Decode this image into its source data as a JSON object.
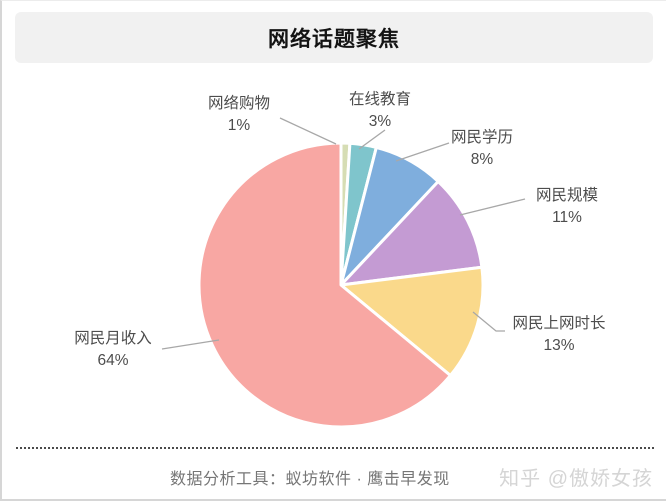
{
  "title": "网络话题聚焦",
  "chart_data": {
    "type": "pie",
    "title": "网络话题聚焦",
    "start_angle_deg": 0,
    "direction": "clockwise",
    "slices": [
      {
        "name": "网络购物",
        "value": 1,
        "pct": "1%",
        "color": "#d6ddb4"
      },
      {
        "name": "在线教育",
        "value": 3,
        "pct": "3%",
        "color": "#7fc5cc"
      },
      {
        "name": "网民学历",
        "value": 8,
        "pct": "8%",
        "color": "#7faedd"
      },
      {
        "name": "网民规模",
        "value": 11,
        "pct": "11%",
        "color": "#c49bd3"
      },
      {
        "name": "网民上网时长",
        "value": 13,
        "pct": "13%",
        "color": "#fad98b"
      },
      {
        "name": "网民月收入",
        "value": 64,
        "pct": "64%",
        "color": "#f8a7a3"
      }
    ],
    "label_color": "#4d4d4d",
    "leader_line_color": "#a8a8a8",
    "slice_gap_color": "#ffffff",
    "legend_position": "none"
  },
  "footer": {
    "source_text": "数据分析工具：蚁坊软件 · 鹰击早发现",
    "watermark": "知乎 @傲娇女孩"
  }
}
